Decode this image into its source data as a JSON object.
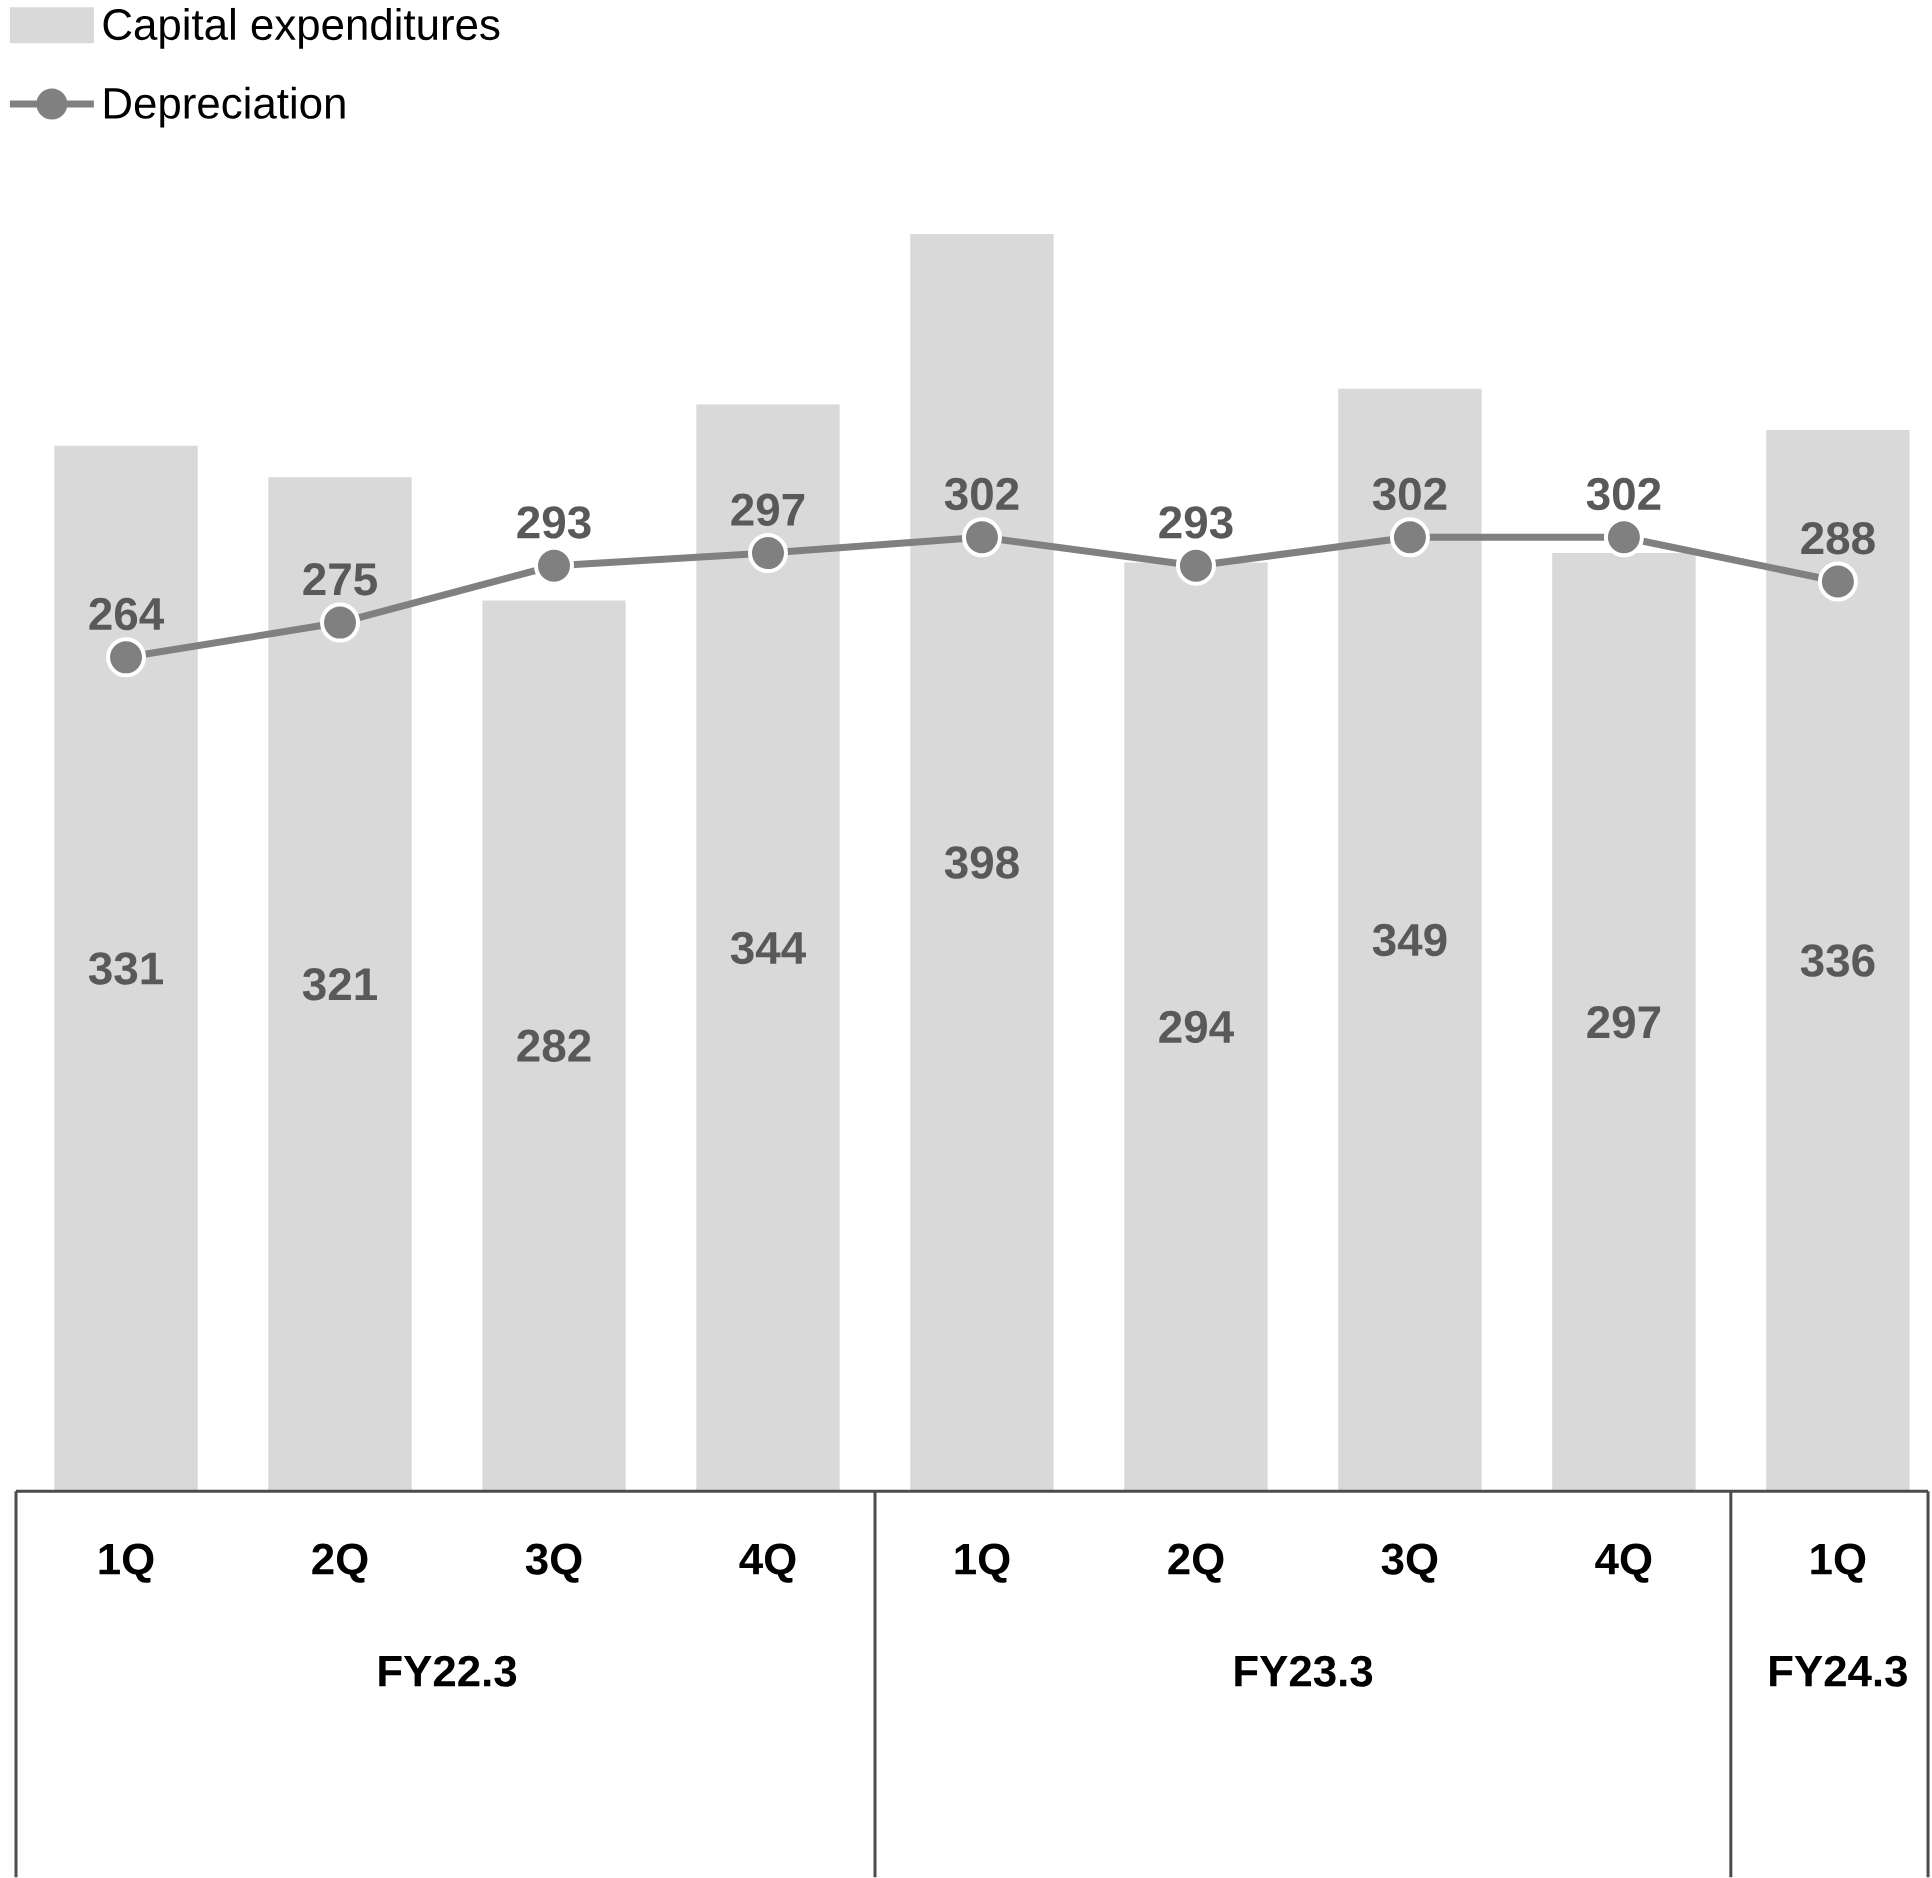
{
  "chart_data": {
    "type": "bar",
    "categories": [
      "1Q",
      "2Q",
      "3Q",
      "4Q",
      "1Q",
      "2Q",
      "3Q",
      "4Q",
      "1Q"
    ],
    "series": [
      {
        "name": "Capital expenditures",
        "color": "#d9d9d9",
        "values": [
          331,
          321,
          282,
          344,
          398,
          294,
          349,
          297,
          336
        ]
      },
      {
        "name": "Depreciation",
        "type": "line",
        "color": "#808080",
        "marker": "circle",
        "values": [
          264,
          275,
          293,
          297,
          302,
          293,
          302,
          302,
          288
        ]
      }
    ],
    "tick_labels": "x",
    "data_labels": true,
    "legend": "top left",
    "annotations": [
      "FY22.3",
      "FY23.3",
      "FY24.3"
    ]
  }
}
